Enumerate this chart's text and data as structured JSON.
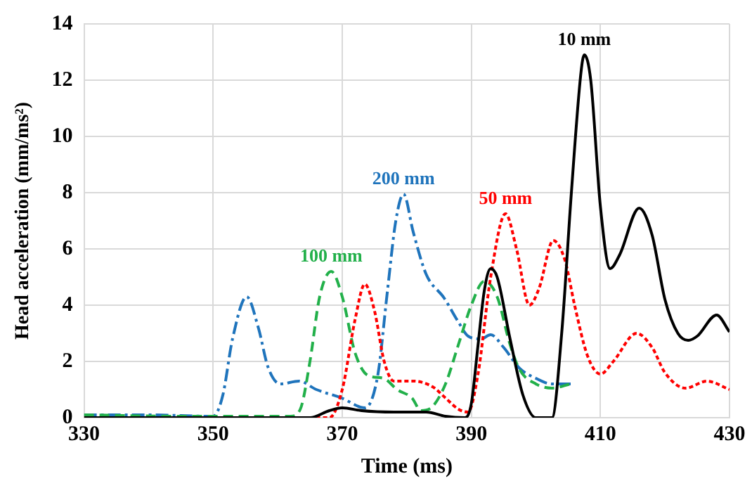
{
  "chart_data": {
    "type": "line",
    "xlabel": "Time (ms)",
    "ylabel": "Head acceleration (mm/ms²)",
    "xlim": [
      330,
      430
    ],
    "xticks": [
      330,
      350,
      370,
      390,
      410,
      430
    ],
    "ylim": [
      0,
      14
    ],
    "yticks": [
      0,
      2,
      4,
      6,
      8,
      10,
      12,
      14
    ],
    "grid": true,
    "legend": false,
    "marker": "none",
    "series": [
      {
        "name": "10 mm",
        "color": "#000000",
        "line_style": "solid",
        "x": [
          330,
          360,
          365,
          368,
          370,
          373,
          378,
          383,
          386,
          389,
          390,
          391,
          392,
          393,
          394,
          396,
          398,
          400,
          402.5,
          404,
          405.5,
          407,
          407.5,
          408.5,
          410,
          411.5,
          413,
          416,
          418,
          420,
          422,
          423.6,
          425,
          428,
          430
        ],
        "values": [
          0,
          0,
          0,
          0.25,
          0.35,
          0.25,
          0.2,
          0.2,
          0.05,
          0,
          0.5,
          2.5,
          4.5,
          5.3,
          5.0,
          2.8,
          0.8,
          0,
          0,
          3,
          8,
          12.3,
          12.9,
          12,
          7.5,
          5.3,
          5.8,
          7.45,
          6.5,
          4.2,
          3.0,
          2.75,
          2.9,
          3.65,
          3.05
        ]
      },
      {
        "name": "50 mm",
        "color": "#ff0000",
        "line_style": "dotted",
        "x": [
          330,
          368,
          370,
          372,
          373.5,
          375,
          376.5,
          378,
          381,
          384,
          386,
          388,
          389.5,
          391,
          393,
          395.3,
          397,
          399,
          400.5,
          402.7,
          404.5,
          406,
          408,
          410,
          412,
          415.6,
          418,
          420,
          423.2,
          426.5,
          430
        ],
        "values": [
          0,
          0,
          1,
          3.5,
          4.75,
          3.8,
          2,
          1.3,
          1.3,
          1.1,
          0.7,
          0.3,
          0.2,
          1.5,
          5.0,
          7.25,
          6.0,
          4.0,
          4.6,
          6.3,
          5.6,
          4.0,
          2.2,
          1.55,
          2.0,
          3.0,
          2.5,
          1.6,
          1.05,
          1.3,
          1.0
        ]
      },
      {
        "name": "100 mm",
        "color": "#22b04a",
        "line_style": "dashed",
        "x": [
          330,
          345,
          362,
          363.5,
          365,
          366.5,
          368.3,
          370,
          372,
          374,
          376.4,
          378.5,
          380.8,
          382.2,
          384,
          386,
          388,
          390,
          392,
          394,
          396,
          397.5,
          400,
          402.5,
          405.4
        ],
        "values": [
          0.1,
          0.05,
          0.05,
          0.3,
          2.0,
          4.3,
          5.2,
          4.3,
          2.3,
          1.5,
          1.4,
          1.0,
          0.7,
          0.25,
          0.4,
          1.2,
          2.6,
          4.0,
          4.85,
          4.3,
          2.6,
          1.7,
          1.2,
          1.05,
          1.2
        ]
      },
      {
        "name": "200 mm",
        "color": "#1f74bc",
        "line_style": "dashdot",
        "x": [
          330,
          340,
          350,
          351.5,
          353,
          355.2,
          357,
          358.5,
          360.4,
          363.3,
          366,
          369.9,
          373.5,
          375.5,
          377,
          378.3,
          379.5,
          381,
          383,
          385.8,
          388,
          389.5,
          391.5,
          393,
          395,
          397.5,
          400,
          402.5,
          405.4
        ],
        "values": [
          0.1,
          0.1,
          0.05,
          0.8,
          2.8,
          4.3,
          3.2,
          1.8,
          1.2,
          1.3,
          1.0,
          0.7,
          0.35,
          1.5,
          4.5,
          7.0,
          7.95,
          6.6,
          5.1,
          4.25,
          3.4,
          2.9,
          2.8,
          2.95,
          2.5,
          1.75,
          1.4,
          1.2,
          1.2
        ]
      }
    ]
  }
}
